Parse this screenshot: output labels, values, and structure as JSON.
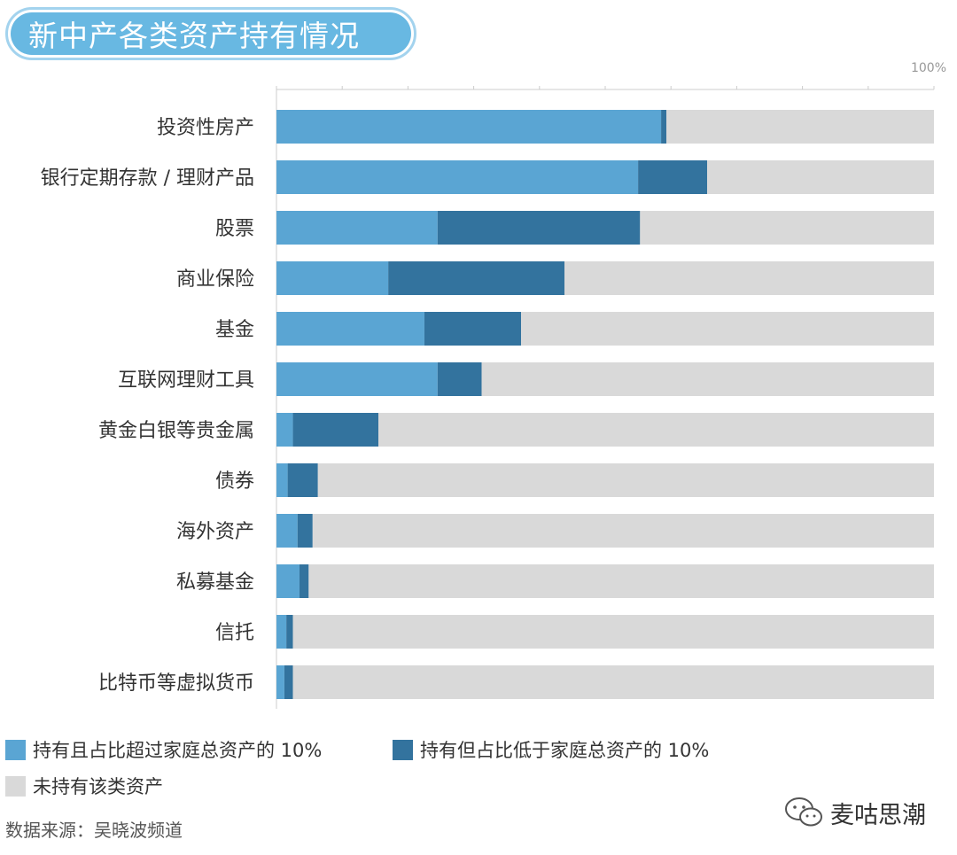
{
  "title": "新中产各类资产持有情况",
  "chart_data": {
    "type": "bar",
    "orientation": "horizontal",
    "stacked": true,
    "xmax_label": "100%",
    "xlim": [
      0,
      100
    ],
    "categories": [
      "投资性房产",
      "银行定期存款 / 理财产品",
      "股票",
      "商业保险",
      "基金",
      "互联网理财工具",
      "黄金白银等贵金属",
      "债券",
      "海外资产",
      "私募基金",
      "信托",
      "比特币等虚拟货币"
    ],
    "series": [
      {
        "name": "持有且占比超过家庭总资产的 10%",
        "color": "#5aa5d3",
        "values": [
          58.5,
          55,
          24.5,
          17,
          22.5,
          24.5,
          2.5,
          1.7,
          3.2,
          3.5,
          1.5,
          1.2
        ]
      },
      {
        "name": "持有但占比低于家庭总资产的 10%",
        "color": "#33739e",
        "values": [
          0.8,
          10.5,
          30.8,
          26.8,
          14.7,
          6.7,
          13,
          4.6,
          2.3,
          1.4,
          1.0,
          1.3
        ]
      },
      {
        "name": "未持有该类资产",
        "color": "#d9d9d9",
        "values": [
          40.7,
          34.5,
          44.7,
          56.2,
          62.8,
          68.8,
          84.5,
          93.7,
          94.5,
          95.1,
          97.5,
          97.5
        ]
      }
    ]
  },
  "legend": [
    {
      "label": "持有且占比超过家庭总资产的 10%",
      "color": "#5aa5d3"
    },
    {
      "label": "持有但占比低于家庭总资产的 10%",
      "color": "#33739e"
    },
    {
      "label": "未持有该类资产",
      "color": "#d9d9d9"
    }
  ],
  "source": "数据来源：吴晓波频道",
  "brand": "麦咕思潮"
}
